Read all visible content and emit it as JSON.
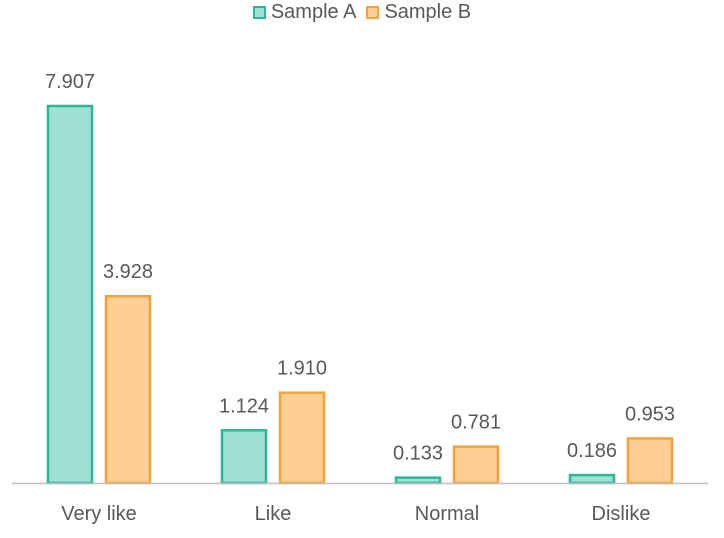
{
  "chart_data": {
    "type": "bar",
    "categories": [
      "Very like",
      "Like",
      "Normal",
      "Dislike"
    ],
    "series": [
      {
        "name": "Sample A",
        "values": [
          7.907,
          1.124,
          0.133,
          0.186
        ],
        "color": "#9FE1D3",
        "stroke": "#2DB894"
      },
      {
        "name": "Sample B",
        "values": [
          3.928,
          1.91,
          0.781,
          0.953
        ],
        "color": "#FDCF93",
        "stroke": "#F5A23A"
      }
    ],
    "data_labels": [
      [
        "7.907",
        "1.124",
        "0.133",
        "0.186"
      ],
      [
        "3.928",
        "1.910",
        "0.781",
        "0.953"
      ]
    ],
    "title": "",
    "xlabel": "",
    "ylabel": "",
    "ylim": [
      0,
      8
    ],
    "grid": false,
    "legend_position": "top-center",
    "axis_color": "#BFBFBF",
    "text_color": "#595959"
  }
}
